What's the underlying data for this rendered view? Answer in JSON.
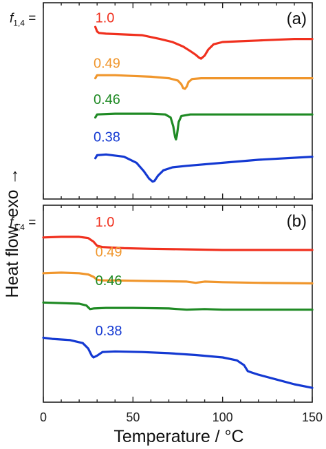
{
  "chart_data": {
    "type": "line",
    "xlabel": "Temperature / °C",
    "ylabel": "Heat flow, exo →",
    "xlim": [
      0,
      150
    ],
    "x_ticks": [
      0,
      50,
      100,
      150
    ],
    "x_tick_labels": [
      "0",
      "50",
      "100",
      "150"
    ],
    "x_minor_ticks": [
      10,
      20,
      30,
      40,
      60,
      70,
      80,
      90,
      110,
      120,
      130,
      140
    ],
    "grid": false,
    "legend": "inline labels at left of each trace",
    "composition_label": {
      "symbol": "f",
      "subscript": "1,4",
      "equals": "="
    },
    "panels": [
      {
        "label": "(a)",
        "series": [
          {
            "name": "1.0",
            "color": "#f0301e",
            "label_x": 29,
            "label_y": 10.2,
            "x": [
              29,
              30,
              31,
              35,
              45,
              55,
              65,
              72,
              78,
              82,
              85,
              87,
              88,
              90,
              92,
              95,
              100,
              110,
              120,
              130,
              140,
              150
            ],
            "y": [
              9.9,
              9.6,
              9.5,
              9.45,
              9.4,
              9.35,
              9.1,
              8.9,
              8.6,
              8.3,
              8.05,
              7.85,
              7.8,
              8.0,
              8.4,
              8.75,
              8.9,
              8.95,
              9.0,
              9.05,
              9.1,
              9.1
            ]
          },
          {
            "name": "0.49",
            "color": "#f0962c",
            "label_x": 28,
            "label_y": 7.2,
            "x": [
              29,
              30,
              40,
              50,
              60,
              70,
              75,
              77,
              78,
              79,
              80,
              81,
              83,
              88,
              100,
              120,
              150
            ],
            "y": [
              6.5,
              6.7,
              6.7,
              6.65,
              6.6,
              6.5,
              6.35,
              6.1,
              5.85,
              5.8,
              5.95,
              6.25,
              6.45,
              6.5,
              6.5,
              6.5,
              6.5
            ]
          },
          {
            "name": "0.46",
            "color": "#1f8a24",
            "label_x": 28,
            "label_y": 4.8,
            "x": [
              29,
              30,
              40,
              50,
              60,
              68,
              71,
              72.5,
              73.5,
              74,
              74.5,
              75.5,
              77,
              82,
              100,
              120,
              150
            ],
            "y": [
              3.9,
              4.1,
              4.15,
              4.15,
              4.15,
              4.1,
              3.9,
              3.3,
              2.6,
              2.45,
              2.7,
              3.6,
              4.0,
              4.1,
              4.1,
              4.1,
              4.1
            ]
          },
          {
            "name": "0.38",
            "color": "#1439d2",
            "label_x": 28,
            "label_y": 2.3,
            "x": [
              29,
              30,
              35,
              45,
              52,
              56,
              59,
              61,
              62,
              64,
              67,
              72,
              80,
              100,
              120,
              150
            ],
            "y": [
              1.2,
              1.4,
              1.45,
              1.3,
              0.9,
              0.35,
              -0.15,
              -0.35,
              -0.3,
              0.05,
              0.4,
              0.6,
              0.7,
              0.9,
              1.1,
              1.3
            ]
          }
        ]
      },
      {
        "label": "(b)",
        "series": [
          {
            "name": "1.0",
            "color": "#f0301e",
            "label_x": 29,
            "label_y": 10.2,
            "x": [
              0,
              10,
              20,
              25,
              28,
              30,
              33,
              38,
              45,
              60,
              80,
              100,
              120,
              150
            ],
            "y": [
              9.3,
              9.35,
              9.35,
              9.25,
              8.95,
              8.6,
              8.5,
              8.45,
              8.4,
              8.35,
              8.3,
              8.25,
              8.25,
              8.25
            ]
          },
          {
            "name": "0.49",
            "color": "#f0962c",
            "label_x": 29,
            "label_y": 7.7,
            "x": [
              0,
              10,
              20,
              25,
              28,
              30,
              33,
              40,
              60,
              80,
              85,
              90,
              100,
              120,
              150
            ],
            "y": [
              6.3,
              6.35,
              6.3,
              6.2,
              6.0,
              5.75,
              5.7,
              5.7,
              5.65,
              5.6,
              5.5,
              5.6,
              5.55,
              5.5,
              5.45
            ]
          },
          {
            "name": "0.46",
            "color": "#1f8a24",
            "label_x": 29,
            "label_y": 5.3,
            "x": [
              0,
              10,
              20,
              24,
              26,
              28,
              35,
              50,
              70,
              75,
              80,
              90,
              100,
              120,
              150
            ],
            "y": [
              3.85,
              3.8,
              3.75,
              3.6,
              3.3,
              3.35,
              3.4,
              3.4,
              3.35,
              3.3,
              3.25,
              3.3,
              3.25,
              3.25,
              3.25
            ]
          },
          {
            "name": "0.38",
            "color": "#1439d2",
            "label_x": 29,
            "label_y": 1.1,
            "x": [
              0,
              5,
              15,
              22,
              25,
              27,
              28,
              30,
              33,
              40,
              55,
              70,
              85,
              100,
              108,
              112,
              114,
              116,
              120,
              130,
              140,
              150
            ],
            "y": [
              0.9,
              0.8,
              0.7,
              0.45,
              0.0,
              -0.6,
              -0.75,
              -0.6,
              -0.3,
              -0.25,
              -0.3,
              -0.4,
              -0.55,
              -0.75,
              -1.0,
              -1.4,
              -1.9,
              -2.0,
              -2.2,
              -2.6,
              -3.0,
              -3.3
            ]
          }
        ]
      }
    ]
  }
}
